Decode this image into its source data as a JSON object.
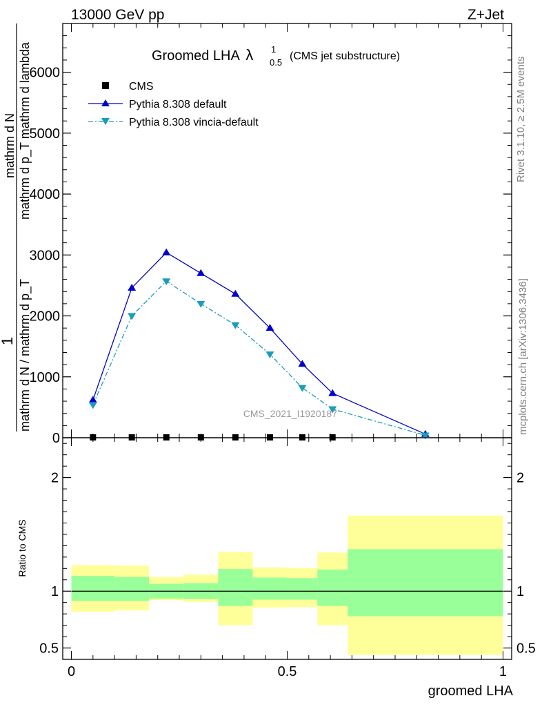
{
  "header": {
    "left": "13000 GeV pp",
    "right": "Z+Jet"
  },
  "side_text": {
    "rivet": "Rivet 3.1.10, ≥ 2.5M events",
    "mcplots": "mcplots.cern.ch [arXiv:1306.3436]"
  },
  "watermark": "CMS_2021_I1920187",
  "title": {
    "main": "Groomed LHA",
    "lambda": "λ",
    "sup": "1",
    "sub": "0.5",
    "suffix": "(CMS jet substructure)"
  },
  "ylabel": {
    "one": "1",
    "num": "mathrm d N / mathrm d p_T",
    "den_main": "mathrm d N",
    "den_sub": "mathrm d p_T mathrm d lambda",
    "num_full": "mathrm d N / mathrm d p_T",
    "den_full": "mathrm dN mathrm d p_T mathrm d lambda"
  },
  "legend": {
    "cms": "CMS",
    "default": "Pythia 8.308 default",
    "vincia": "Pythia 8.308 vincia-default"
  },
  "colors": {
    "cms": "#000000",
    "default": "#0000cc",
    "vincia": "#1a9cba",
    "band_inner": "#99ff99",
    "band_outer": "#ffff99"
  },
  "ratio": {
    "ylabel": "Ratio to CMS"
  },
  "chart_data": {
    "type": "line",
    "main": {
      "xlim": [
        -0.02,
        1.02
      ],
      "ylim": [
        0,
        6800
      ],
      "yticks": [
        0,
        1000,
        2000,
        3000,
        4000,
        5000,
        6000
      ],
      "yticklabels": [
        "0",
        "1000",
        "2000",
        "3000",
        "4000",
        "5000",
        "6000"
      ],
      "series": [
        {
          "name": "CMS",
          "marker": "square",
          "x": [
            0.05,
            0.14,
            0.22,
            0.3,
            0.38,
            0.46,
            0.535,
            0.605
          ],
          "y": [
            0,
            0,
            0,
            0,
            0,
            0,
            0,
            0
          ]
        },
        {
          "name": "Pythia 8.308 default",
          "marker": "triangle-up",
          "x": [
            0.05,
            0.14,
            0.22,
            0.3,
            0.38,
            0.46,
            0.535,
            0.605,
            0.82
          ],
          "y": [
            620,
            2460,
            3040,
            2700,
            2360,
            1800,
            1210,
            730,
            60
          ]
        },
        {
          "name": "Pythia 8.308 vincia-default",
          "marker": "triangle-down",
          "x": [
            0.05,
            0.14,
            0.22,
            0.3,
            0.38,
            0.46,
            0.535,
            0.605,
            0.82
          ],
          "y": [
            540,
            2000,
            2570,
            2200,
            1850,
            1370,
            820,
            470,
            40
          ]
        }
      ]
    },
    "ratio": {
      "xlim": [
        -0.02,
        1.02
      ],
      "ylim": [
        0.4,
        2.35
      ],
      "yticks": [
        0.5,
        1,
        2
      ],
      "yticklabels": [
        "0.5",
        "1",
        "2"
      ],
      "xticks": [
        0,
        0.5,
        1
      ],
      "xticklabels": [
        "0",
        "0.5",
        "1"
      ],
      "xlabel": "groomed LHA",
      "bands": [
        {
          "x0": 0.0,
          "x1": 0.1,
          "inner": [
            0.915,
            1.135
          ],
          "outer": [
            0.82,
            1.23
          ]
        },
        {
          "x0": 0.1,
          "x1": 0.18,
          "inner": [
            0.915,
            1.125
          ],
          "outer": [
            0.83,
            1.225
          ]
        },
        {
          "x0": 0.18,
          "x1": 0.26,
          "inner": [
            0.935,
            1.065
          ],
          "outer": [
            0.92,
            1.125
          ]
        },
        {
          "x0": 0.26,
          "x1": 0.34,
          "inner": [
            0.93,
            1.07
          ],
          "outer": [
            0.905,
            1.145
          ]
        },
        {
          "x0": 0.34,
          "x1": 0.42,
          "inner": [
            0.87,
            1.195
          ],
          "outer": [
            0.7,
            1.345
          ]
        },
        {
          "x0": 0.42,
          "x1": 0.5,
          "inner": [
            0.925,
            1.12
          ],
          "outer": [
            0.855,
            1.21
          ]
        },
        {
          "x0": 0.5,
          "x1": 0.57,
          "inner": [
            0.925,
            1.115
          ],
          "outer": [
            0.86,
            1.205
          ]
        },
        {
          "x0": 0.57,
          "x1": 0.64,
          "inner": [
            0.87,
            1.19
          ],
          "outer": [
            0.7,
            1.34
          ]
        },
        {
          "x0": 0.64,
          "x1": 1.0,
          "inner": [
            0.78,
            1.37
          ],
          "outer": [
            0.44,
            1.665
          ]
        }
      ],
      "reference_line": 1
    }
  }
}
